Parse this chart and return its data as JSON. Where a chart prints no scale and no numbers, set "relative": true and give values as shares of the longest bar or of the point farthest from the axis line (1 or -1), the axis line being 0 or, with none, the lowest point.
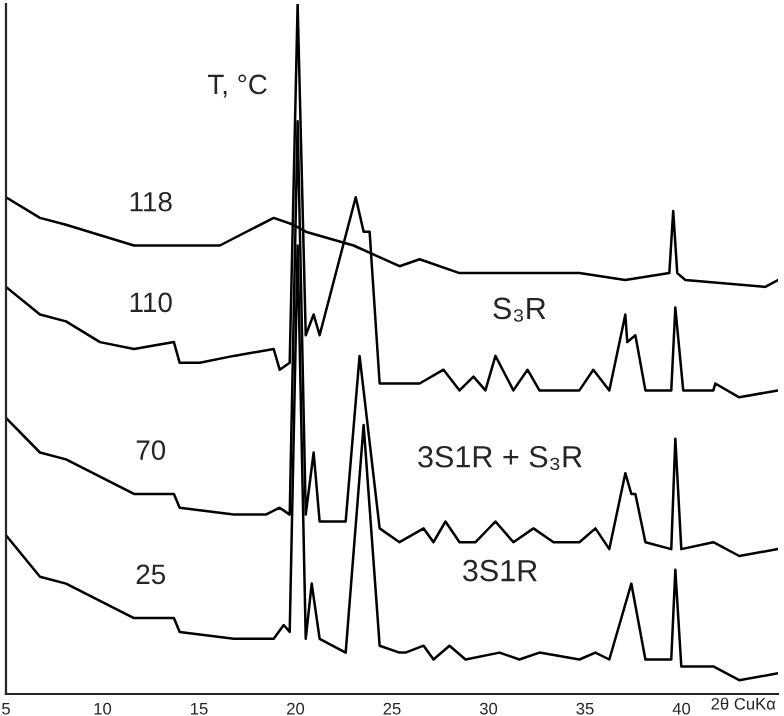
{
  "chart_data": {
    "type": "line",
    "relative": true,
    "xlabel": "2θ CuKα",
    "xlim": [
      5,
      45
    ],
    "xticks": [
      5,
      10,
      15,
      20,
      25,
      30,
      35,
      40
    ],
    "tick_labels": "x",
    "legend": false,
    "grid": false,
    "annotations": [
      "T, °C",
      "S₃R",
      "3S1R + S₃R",
      "3S1R"
    ],
    "series": [
      {
        "name": "118",
        "color": "#000000",
        "x": [
          5,
          6.76,
          8.11,
          11.63,
          13.7,
          16.08,
          18.87,
          19.9,
          20.53,
          23.01,
          25.39,
          26.43,
          28.5,
          34.71,
          37.09,
          39.37,
          39.57,
          39.78,
          40.2,
          44.34,
          45
        ],
        "values": [
          0.72,
          0.69,
          0.68,
          0.65,
          0.65,
          0.65,
          0.69,
          0.68,
          0.67,
          0.65,
          0.62,
          0.63,
          0.61,
          0.61,
          0.6,
          0.61,
          0.7,
          0.61,
          0.6,
          0.59,
          0.6
        ]
      },
      {
        "name": "110",
        "color": "#000000",
        "x": [
          5,
          6.76,
          8.11,
          9.87,
          11.63,
          13.7,
          14.0,
          15.04,
          16.8,
          18.87,
          19.18,
          19.7,
          20.11,
          20.53,
          20.94,
          21.25,
          23.12,
          23.53,
          23.84,
          24.36,
          25.39,
          26.43,
          27.67,
          28.5,
          29.22,
          29.84,
          30.36,
          31.29,
          32.02,
          32.64,
          34.71,
          35.43,
          36.26,
          37.09,
          37.19,
          37.61,
          38.13,
          39.47,
          39.68,
          40.09,
          41.65,
          41.75,
          42.99,
          45
        ],
        "values": [
          0.59,
          0.55,
          0.54,
          0.51,
          0.5,
          0.51,
          0.48,
          0.48,
          0.49,
          0.5,
          0.47,
          0.48,
          1.0,
          0.52,
          0.55,
          0.52,
          0.72,
          0.67,
          0.67,
          0.45,
          0.45,
          0.45,
          0.47,
          0.44,
          0.46,
          0.44,
          0.49,
          0.44,
          0.47,
          0.44,
          0.44,
          0.47,
          0.44,
          0.55,
          0.51,
          0.52,
          0.44,
          0.44,
          0.56,
          0.44,
          0.44,
          0.45,
          0.43,
          0.44
        ]
      },
      {
        "name": "70",
        "color": "#000000",
        "x": [
          5,
          6.76,
          8.11,
          11.63,
          13.7,
          14.0,
          16.8,
          18.46,
          19.18,
          19.7,
          20.11,
          20.53,
          20.94,
          21.25,
          22.6,
          23.32,
          24.36,
          25.39,
          26.64,
          27.15,
          27.77,
          28.5,
          29.33,
          30.36,
          31.29,
          32.33,
          33.37,
          34.71,
          35.54,
          36.26,
          37.09,
          37.4,
          37.61,
          38.13,
          39.47,
          39.68,
          39.99,
          41.65,
          42.99,
          45
        ],
        "values": [
          0.4,
          0.35,
          0.34,
          0.29,
          0.29,
          0.27,
          0.26,
          0.26,
          0.27,
          0.26,
          0.83,
          0.26,
          0.35,
          0.25,
          0.25,
          0.49,
          0.24,
          0.22,
          0.24,
          0.22,
          0.25,
          0.22,
          0.22,
          0.25,
          0.22,
          0.24,
          0.22,
          0.22,
          0.24,
          0.21,
          0.32,
          0.29,
          0.29,
          0.22,
          0.21,
          0.37,
          0.21,
          0.22,
          0.2,
          0.21
        ]
      },
      {
        "name": "25",
        "color": "#000000",
        "x": [
          5,
          6.76,
          8.11,
          11.63,
          13.7,
          14.0,
          16.8,
          18.87,
          19.39,
          19.7,
          20.11,
          20.53,
          20.84,
          21.25,
          22.6,
          23.53,
          24.36,
          25.39,
          25.7,
          26.64,
          27.15,
          27.98,
          28.81,
          30.57,
          31.6,
          32.64,
          34.71,
          35.54,
          36.26,
          37.4,
          38.13,
          39.47,
          39.68,
          39.99,
          41.65,
          42.99,
          45
        ],
        "values": [
          0.23,
          0.17,
          0.16,
          0.11,
          0.11,
          0.09,
          0.08,
          0.08,
          0.1,
          0.09,
          0.65,
          0.08,
          0.16,
          0.08,
          0.06,
          0.39,
          0.07,
          0.06,
          0.06,
          0.07,
          0.05,
          0.07,
          0.05,
          0.06,
          0.05,
          0.06,
          0.05,
          0.06,
          0.05,
          0.16,
          0.05,
          0.05,
          0.18,
          0.04,
          0.04,
          0.02,
          0.03
        ]
      }
    ]
  }
}
